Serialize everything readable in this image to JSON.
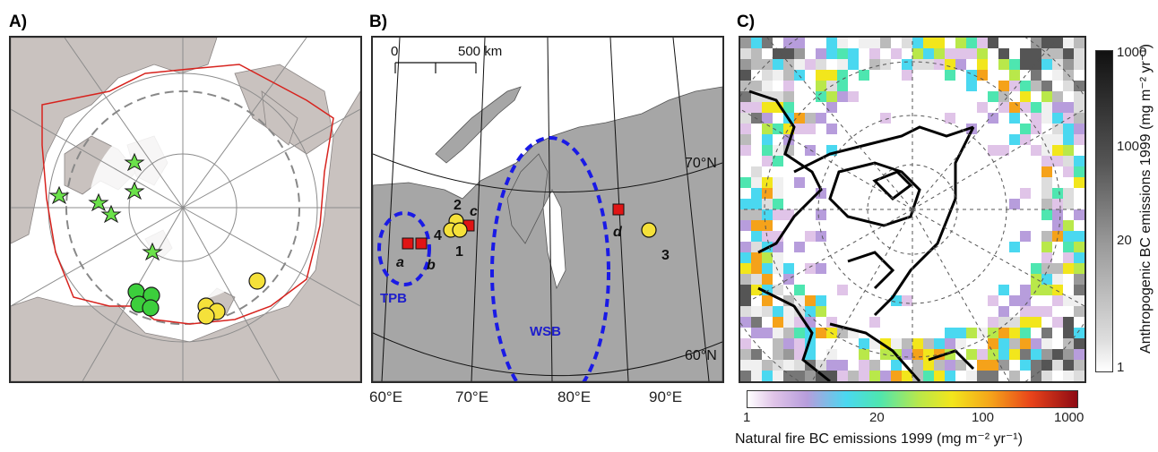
{
  "panels": {
    "a": {
      "label": "A)"
    },
    "b": {
      "label": "B)"
    },
    "c": {
      "label": "C)"
    }
  },
  "panel_b": {
    "scale_zero": "0",
    "scale_distance": "500 km",
    "lat_labels": [
      "70°N",
      "60°N"
    ],
    "lon_labels": [
      "60°E",
      "70°E",
      "80°E",
      "90°E"
    ],
    "basins": [
      "TPB",
      "WSB"
    ],
    "site_numbers": [
      "2",
      "4",
      "1",
      "3"
    ],
    "site_letters": [
      "a",
      "b",
      "c",
      "d"
    ]
  },
  "panel_c": {
    "right_colorbar": {
      "title": "Anthropogenic BC emissions 1999 (mg m⁻² yr⁻¹)",
      "ticks": [
        "1000",
        "100",
        "20",
        "1"
      ]
    },
    "bottom_colorbar": {
      "title": "Natural fire BC emissions 1999 (mg m⁻² yr⁻¹)",
      "ticks": [
        "1",
        "20",
        "100",
        "1000"
      ]
    }
  },
  "colors": {
    "land_a": "#c9c2bf",
    "circle_outline": "#d7231e",
    "star_marker": "#6be24a",
    "green_circle": "#3ccf3c",
    "yellow_circle": "#f5e13a",
    "red_square": "#e01515",
    "basin_dash": "#1a1ae6",
    "land_b": "#a6a6a6"
  }
}
